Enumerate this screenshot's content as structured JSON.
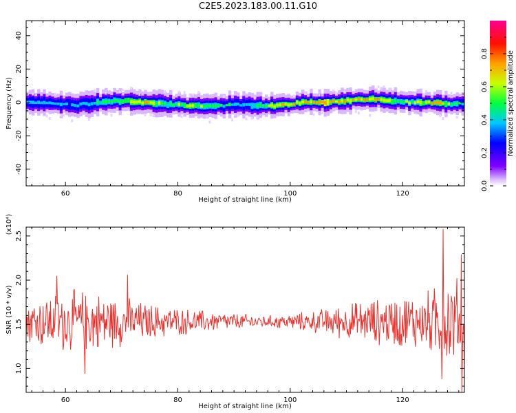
{
  "figure": {
    "title": "C2E5.2023.183.00.11.G10"
  },
  "chart_data": [
    {
      "type": "heatmap",
      "xlabel": "Height of straight line (km)",
      "ylabel": "Frequency (Hz)",
      "xlim": [
        53,
        131
      ],
      "ylim": [
        -50,
        49
      ],
      "xticks": [
        60,
        80,
        100,
        120
      ],
      "yticks": [
        40,
        20,
        0,
        -20,
        -40
      ],
      "grid": false,
      "colorbar": {
        "label": "Normalized spectral amplitude",
        "range": [
          0.0,
          1.0
        ],
        "ticks": [
          "0.0",
          "0.2",
          "0.4",
          "0.6",
          "0.8"
        ],
        "tick_values": [
          0.0,
          0.2,
          0.4,
          0.6,
          0.8
        ],
        "colormap": "rainbow",
        "colors": [
          "#7f00ff",
          "#0000ff",
          "#00ffff",
          "#00ff00",
          "#ffff00",
          "#ff8000",
          "#ff0000",
          "#ff0090"
        ]
      },
      "ridge": {
        "description_center_frequency_hz": [
          [
            53,
            0
          ],
          [
            58,
            -1
          ],
          [
            62,
            -1.5
          ],
          [
            66,
            0
          ],
          [
            70,
            1
          ],
          [
            74,
            0
          ],
          [
            78,
            -1
          ],
          [
            82,
            -2
          ],
          [
            86,
            -2.5
          ],
          [
            90,
            -1
          ],
          [
            94,
            -2
          ],
          [
            98,
            -2
          ],
          [
            102,
            0
          ],
          [
            106,
            0
          ],
          [
            110,
            1
          ],
          [
            114,
            2
          ],
          [
            118,
            0.5
          ],
          [
            122,
            0
          ],
          [
            126,
            -0.5
          ],
          [
            131,
            -1
          ]
        ],
        "core_amplitude": [
          [
            53,
            0.55
          ],
          [
            60,
            0.5
          ],
          [
            66,
            0.6
          ],
          [
            70,
            0.75
          ],
          [
            74,
            0.85
          ],
          [
            78,
            0.6
          ],
          [
            82,
            0.8
          ],
          [
            86,
            0.6
          ],
          [
            90,
            0.55
          ],
          [
            94,
            0.6
          ],
          [
            98,
            0.85
          ],
          [
            102,
            0.8
          ],
          [
            106,
            0.95
          ],
          [
            110,
            0.8
          ],
          [
            114,
            0.85
          ],
          [
            118,
            0.75
          ],
          [
            122,
            0.7
          ],
          [
            126,
            0.9
          ],
          [
            131,
            0.5
          ]
        ]
      }
    },
    {
      "type": "line",
      "xlabel": "Height of straight line (km)",
      "ylabel": "SNR (10 * v/v)",
      "y_multiplier": "(x10⁴)",
      "xlim": [
        53,
        131
      ],
      "ylim": [
        0.73,
        2.6
      ],
      "xticks": [
        60,
        80,
        100,
        120
      ],
      "yticks": [
        1.0,
        1.5,
        2.0,
        2.5
      ],
      "ytick_labels": [
        "1.0",
        "1.5",
        "2.0",
        "2.5"
      ],
      "grid": false,
      "series": [
        {
          "color": "#e8312d",
          "center": 1.53,
          "amplitude_envelope": [
            [
              53,
              0.3
            ],
            [
              56,
              0.35
            ],
            [
              60,
              0.4
            ],
            [
              64,
              0.4
            ],
            [
              68,
              0.35
            ],
            [
              72,
              0.28
            ],
            [
              76,
              0.22
            ],
            [
              80,
              0.18
            ],
            [
              84,
              0.15
            ],
            [
              88,
              0.12
            ],
            [
              92,
              0.1
            ],
            [
              96,
              0.08
            ],
            [
              100,
              0.1
            ],
            [
              104,
              0.14
            ],
            [
              108,
              0.2
            ],
            [
              112,
              0.26
            ],
            [
              116,
              0.3
            ],
            [
              120,
              0.35
            ],
            [
              124,
              0.38
            ],
            [
              128,
              0.55
            ],
            [
              131,
              0.6
            ]
          ],
          "extremes": [
            {
              "x": 63.5,
              "y": 0.94
            },
            {
              "x": 127.2,
              "y": 2.58
            },
            {
              "x": 127.0,
              "y": 0.88
            },
            {
              "x": 130.4,
              "y": 2.29
            },
            {
              "x": 130.6,
              "y": 0.73
            },
            {
              "x": 71.0,
              "y": 2.06
            },
            {
              "x": 58.5,
              "y": 2.05
            }
          ]
        }
      ]
    }
  ]
}
